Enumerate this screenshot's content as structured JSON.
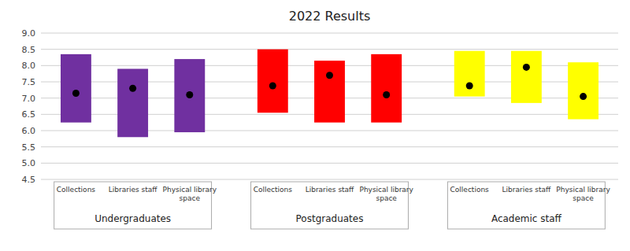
{
  "chart_data": {
    "type": "range_bar",
    "title": "2022 Results",
    "ylim": [
      4.5,
      9
    ],
    "yticks": [
      4.5,
      {
        "value": 5,
        "label": "5.0"
      },
      5.5,
      {
        "value": 6,
        "label": "6.0"
      },
      6.5,
      {
        "value": 7,
        "label": "7.0"
      },
      7.5,
      {
        "value": 8,
        "label": "8.0"
      },
      8.5,
      {
        "value": 9,
        "label": "9.0"
      }
    ],
    "grid": true,
    "categories": [
      "Collections",
      "Libraries staff",
      "Physical library\nspace"
    ],
    "dot_color": "#000000",
    "series": [
      {
        "name": "Undergraduates",
        "color": "#7030a0",
        "low": [
          6.25,
          5.8,
          5.95
        ],
        "high": [
          8.35,
          7.9,
          8.2
        ],
        "dot": [
          7.15,
          7.3,
          7.1
        ]
      },
      {
        "name": "Postgraduates",
        "color": "#ff0000",
        "low": [
          6.55,
          6.25,
          6.25
        ],
        "high": [
          8.5,
          8.15,
          8.35
        ],
        "dot": [
          7.38,
          7.7,
          7.1
        ]
      },
      {
        "name": "Academic staff",
        "color": "#ffff00",
        "low": [
          7.05,
          6.85,
          6.35
        ],
        "high": [
          8.45,
          8.45,
          8.1
        ],
        "dot": [
          7.38,
          7.95,
          7.05
        ]
      }
    ]
  }
}
